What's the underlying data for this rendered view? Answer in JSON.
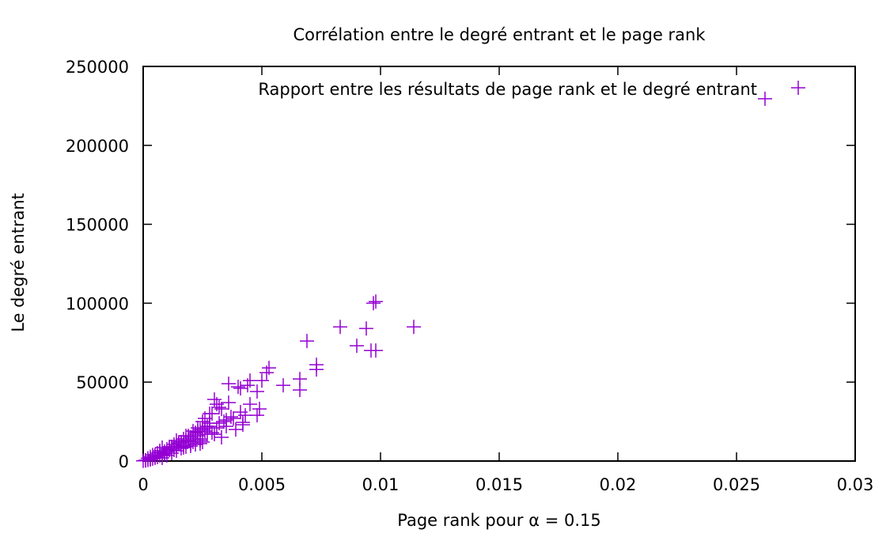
{
  "chart_data": {
    "type": "scatter",
    "title": "Corrélation entre le degré entrant et le page rank",
    "xlabel": "Page rank pour α = 0.15",
    "ylabel": "Le degré entrant",
    "xlim": [
      0,
      0.03
    ],
    "ylim": [
      0,
      250000
    ],
    "x_ticks": [
      "0",
      "0.005",
      "0.01",
      "0.015",
      "0.02",
      "0.025",
      "0.03"
    ],
    "y_ticks": [
      "0",
      "50000",
      "100000",
      "150000",
      "200000",
      "250000"
    ],
    "grid": false,
    "legend_position": "top-right",
    "marker": "plus",
    "color": "#9400d3",
    "series": [
      {
        "name": "Rapport entre les résultats de page rank et le degré entrant",
        "x": [
          0.0262,
          0.0098,
          0.0097,
          0.0114,
          0.0083,
          0.0094,
          0.009,
          0.0096,
          0.0098,
          0.0069,
          0.0073,
          0.0073,
          0.0053,
          0.0052,
          0.005,
          0.0066,
          0.0059,
          0.0066,
          0.0045,
          0.0044,
          0.0041,
          0.0048,
          0.0036,
          0.004,
          0.0045,
          0.0049,
          0.0048,
          0.0043,
          0.0035,
          0.003,
          0.0031,
          0.0033,
          0.0028,
          0.0026,
          0.0038,
          0.0035,
          0.0032,
          0.0029,
          0.0027,
          0.0025,
          0.0024,
          0.0023,
          0.0022,
          0.0021,
          0.002,
          0.0019,
          0.0018,
          0.0017,
          0.0016,
          0.0015,
          0.0014,
          0.0013,
          0.0012,
          0.0011,
          0.001,
          0.0009,
          0.0008,
          0.0007,
          0.0006,
          0.0005,
          0.0004,
          0.0003,
          0.0002,
          0.0001,
          0.0,
          0.0028,
          0.0026,
          0.0024,
          0.0022,
          0.002,
          0.0018,
          0.0016,
          0.0014,
          0.0012,
          0.001,
          0.0008,
          0.0006,
          0.0004,
          0.0002,
          0.0001,
          0.0027,
          0.0025,
          0.0023,
          0.0021,
          0.0019,
          0.0017,
          0.0015,
          0.0013,
          0.0011,
          0.0009,
          0.0007,
          0.0005,
          0.0003,
          0.0003,
          0.0005,
          0.0007,
          0.0009,
          0.0011,
          0.0013,
          0.0015,
          0.0017,
          0.0019,
          0.0021,
          0.0023,
          0.0025,
          0.0008,
          0.001,
          0.0012,
          0.0014,
          0.0016,
          0.0018,
          0.002,
          0.0022,
          0.0024,
          0.0031,
          0.0034,
          0.0037,
          0.0039,
          0.0042,
          0.0029,
          0.0032,
          0.0036,
          0.0033,
          0.0028,
          0.0026,
          0.0024,
          0.003,
          0.0041,
          0.0042
        ],
        "y": [
          229500,
          101000,
          100000,
          85000,
          85000,
          84000,
          73000,
          70000,
          70000,
          76000,
          61000,
          58000,
          59000,
          56000,
          51000,
          52000,
          48000,
          45000,
          51000,
          48000,
          46000,
          44000,
          49000,
          47000,
          36000,
          33000,
          29000,
          29000,
          26000,
          39000,
          36000,
          33000,
          30000,
          27000,
          27000,
          22000,
          24000,
          18000,
          22000,
          25000,
          20000,
          21000,
          17000,
          19000,
          15000,
          16000,
          13000,
          14000,
          12000,
          11000,
          9500,
          9000,
          8000,
          7000,
          6000,
          5000,
          4000,
          3500,
          2500,
          2000,
          1500,
          1000,
          600,
          300,
          100,
          22000,
          19000,
          14000,
          18000,
          11000,
          16000,
          12000,
          13000,
          9000,
          7500,
          8500,
          5000,
          3800,
          1800,
          500,
          17000,
          12000,
          16000,
          14000,
          12500,
          10000,
          12000,
          10500,
          8000,
          6000,
          6500,
          4000,
          2600,
          1200,
          3000,
          5500,
          4500,
          9000,
          7000,
          11000,
          8500,
          13000,
          12000,
          18500,
          20000,
          2000,
          3500,
          5000,
          6500,
          8000,
          9000,
          9500,
          10500,
          11000,
          21000,
          25000,
          28000,
          20000,
          23000,
          30000,
          34000,
          37000,
          15000,
          24000,
          21000,
          13000,
          17000,
          31000,
          24500
        ]
      },
      {
        "name": "",
        "x": [
          0.0276
        ],
        "y": [
          236500
        ]
      }
    ]
  }
}
